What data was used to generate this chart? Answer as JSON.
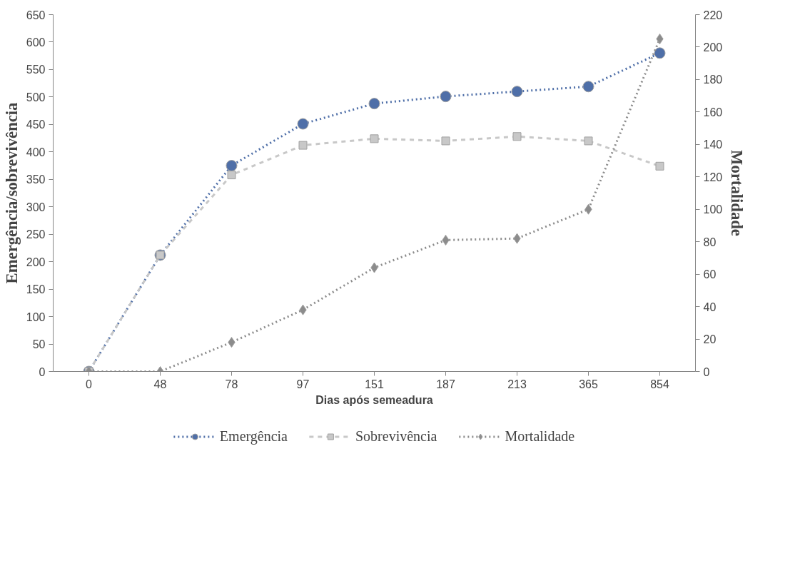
{
  "chart_data": {
    "type": "line",
    "xlabel": "Dias após semeadura",
    "ylabel": "Emergência/sobrevivência",
    "y2label": "Mortalidade",
    "categories": [
      "0",
      "48",
      "78",
      "97",
      "151",
      "187",
      "213",
      "365",
      "854"
    ],
    "ylim": [
      0,
      650
    ],
    "yticks": [
      0,
      50,
      100,
      150,
      200,
      250,
      300,
      350,
      400,
      450,
      500,
      550,
      600,
      650
    ],
    "y2lim": [
      0,
      220
    ],
    "y2ticks": [
      0,
      20,
      40,
      60,
      80,
      100,
      120,
      140,
      160,
      180,
      200,
      220
    ],
    "grid": false,
    "legend": "bottom",
    "series": [
      {
        "name": "Emergência",
        "color": "#4f6fa8",
        "marker": "circle",
        "line_style": "dotted",
        "values": [
          0,
          212,
          375,
          451,
          488,
          501,
          510,
          519,
          580
        ]
      },
      {
        "name": "Sobrevivência",
        "color": "#c8c8c8",
        "marker": "square",
        "line_style": "dashed",
        "values": [
          0,
          212,
          358,
          412,
          424,
          420,
          428,
          420,
          374
        ]
      },
      {
        "name": "Mortalidade",
        "color": "#8c8c8c",
        "marker": "diamond",
        "line_style": "dotted",
        "axis": "y2",
        "values": [
          0,
          0,
          18,
          38,
          64,
          81,
          82,
          100,
          205
        ]
      }
    ]
  }
}
